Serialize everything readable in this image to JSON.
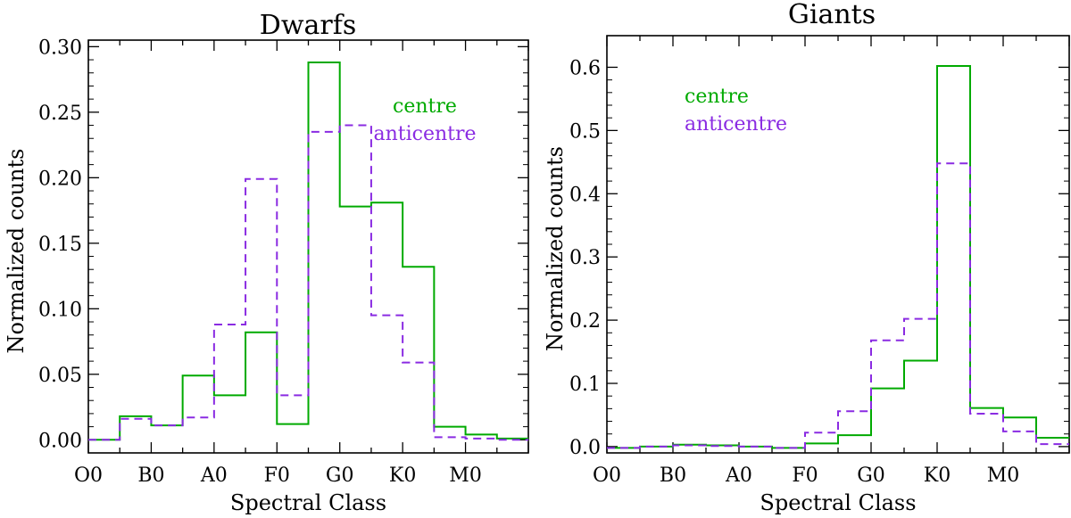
{
  "chart_data": [
    {
      "type": "step",
      "title": "Dwarfs",
      "xlabel": "Spectral Class",
      "ylabel": "Normalized counts",
      "xticks": [
        "O0",
        "B0",
        "A0",
        "F0",
        "G0",
        "K0",
        "M0"
      ],
      "ylim": [
        -0.01,
        0.305
      ],
      "yticks": [
        "0.00",
        "0.05",
        "0.10",
        "0.15",
        "0.20",
        "0.25",
        "0.30"
      ],
      "bin_count": 14,
      "legend_position": "top-right",
      "series": [
        {
          "name": "centre",
          "color": "#00aa00",
          "style": "solid",
          "values": [
            0.0,
            0.018,
            0.011,
            0.049,
            0.034,
            0.082,
            0.012,
            0.288,
            0.178,
            0.181,
            0.132,
            0.01,
            0.004,
            0.001
          ]
        },
        {
          "name": "anticentre",
          "color": "#8a2be2",
          "style": "dashed",
          "values": [
            0.0,
            0.016,
            0.011,
            0.017,
            0.088,
            0.199,
            0.034,
            0.235,
            0.24,
            0.095,
            0.059,
            0.002,
            0.001,
            0.0
          ]
        }
      ]
    },
    {
      "type": "step",
      "title": "Giants",
      "xlabel": "Spectral Class",
      "ylabel": "Normalized counts",
      "xticks": [
        "O0",
        "B0",
        "A0",
        "F0",
        "G0",
        "K0",
        "M0"
      ],
      "ylim": [
        -0.01,
        0.65
      ],
      "yticks": [
        "0.0",
        "0.1",
        "0.2",
        "0.3",
        "0.4",
        "0.5",
        "0.6"
      ],
      "bin_count": 14,
      "legend_position": "top-left",
      "series": [
        {
          "name": "centre",
          "color": "#00aa00",
          "style": "solid",
          "values": [
            -0.002,
            0.0,
            0.003,
            0.002,
            0.0,
            -0.002,
            0.005,
            0.018,
            0.092,
            0.136,
            0.602,
            0.061,
            0.046,
            0.014
          ]
        },
        {
          "name": "anticentre",
          "color": "#8a2be2",
          "style": "dashed",
          "values": [
            -0.002,
            0.0,
            0.002,
            0.001,
            0.0,
            -0.002,
            0.022,
            0.056,
            0.168,
            0.202,
            0.448,
            0.052,
            0.024,
            0.004
          ]
        }
      ]
    }
  ]
}
